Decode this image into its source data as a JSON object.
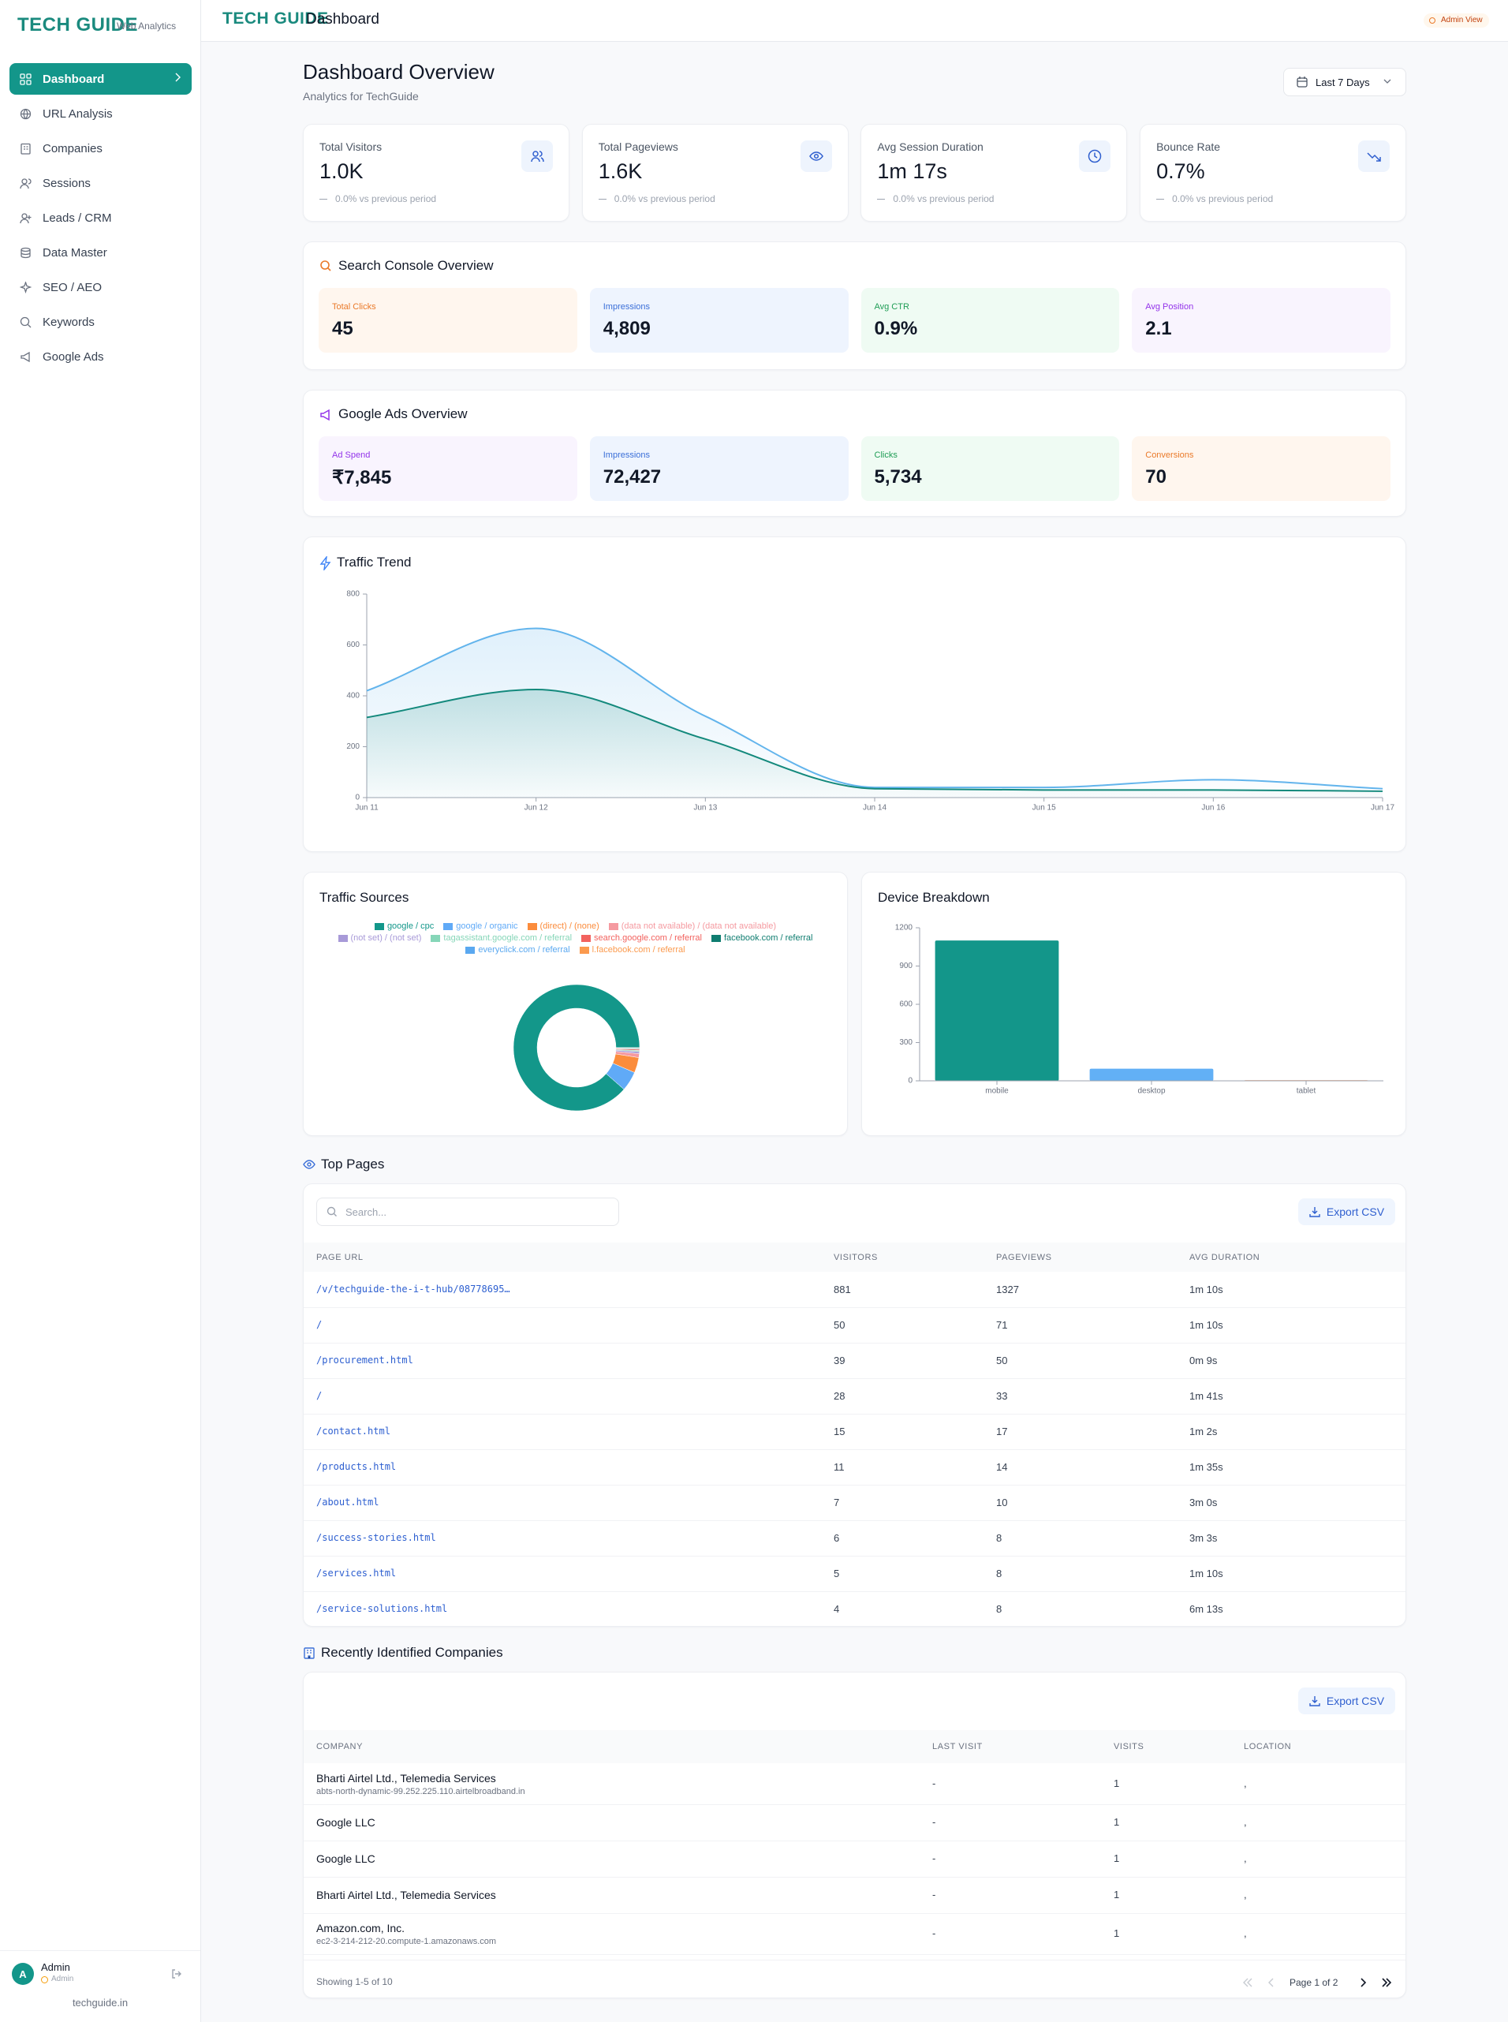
{
  "sidebar": {
    "brand": "TECH GUIDE",
    "brand_sub": "Web Analytics",
    "nav": [
      {
        "label": "Dashboard",
        "active": true
      },
      {
        "label": "URL Analysis"
      },
      {
        "label": "Companies"
      },
      {
        "label": "Sessions"
      },
      {
        "label": "Leads / CRM"
      },
      {
        "label": "Data Master"
      },
      {
        "label": "SEO / AEO"
      },
      {
        "label": "Keywords"
      },
      {
        "label": "Google Ads"
      }
    ],
    "user": {
      "initial": "A",
      "name": "Admin",
      "role": "Admin"
    },
    "footer": "techguide.in"
  },
  "header": {
    "brand": "TECH GUIDE",
    "title": "Dashboard",
    "badge": "Admin View"
  },
  "overview": {
    "title": "Dashboard Overview",
    "subtitle": "Analytics for TechGuide",
    "range": "Last 7 Days"
  },
  "stats": [
    {
      "label": "Total Visitors",
      "value": "1.0K",
      "change": "0.0% vs previous period"
    },
    {
      "label": "Total Pageviews",
      "value": "1.6K",
      "change": "0.0% vs previous period"
    },
    {
      "label": "Avg Session Duration",
      "value": "1m 17s",
      "change": "0.0% vs previous period"
    },
    {
      "label": "Bounce Rate",
      "value": "0.7%",
      "change": "0.0% vs previous period"
    }
  ],
  "search_console": {
    "title": "Search Console Overview",
    "metrics": [
      {
        "label": "Total Clicks",
        "value": "45",
        "color": "#ea7a2a",
        "bg": "#fff6ee"
      },
      {
        "label": "Impressions",
        "value": "4,809",
        "color": "#3b6fd8",
        "bg": "#eef4fe"
      },
      {
        "label": "Avg CTR",
        "value": "0.9%",
        "color": "#1f9d55",
        "bg": "#effbf3"
      },
      {
        "label": "Avg Position",
        "value": "2.1",
        "color": "#9333ea",
        "bg": "#f9f4fe"
      }
    ]
  },
  "google_ads": {
    "title": "Google Ads Overview",
    "metrics": [
      {
        "label": "Ad Spend",
        "value": "₹7,845",
        "color": "#9333ea",
        "bg": "#f9f4fe"
      },
      {
        "label": "Impressions",
        "value": "72,427",
        "color": "#3b6fd8",
        "bg": "#eef4fe"
      },
      {
        "label": "Clicks",
        "value": "5,734",
        "color": "#1f9d55",
        "bg": "#effbf3"
      },
      {
        "label": "Conversions",
        "value": "70",
        "color": "#ea7a2a",
        "bg": "#fff6ee"
      }
    ]
  },
  "chart_data": [
    {
      "type": "line",
      "title": "Traffic Trend",
      "categories": [
        "Jun 11",
        "Jun 12",
        "Jun 13",
        "Jun 14",
        "Jun 15",
        "Jun 16",
        "Jun 17"
      ],
      "series": [
        {
          "color": "#62b4ec",
          "values": [
            420,
            665,
            320,
            40,
            40,
            70,
            35
          ]
        },
        {
          "color": "#13897c",
          "values": [
            315,
            425,
            230,
            35,
            30,
            30,
            25
          ]
        }
      ],
      "ylim": [
        0,
        800
      ],
      "yticks": [
        0,
        200,
        400,
        600,
        800
      ],
      "grid": false,
      "area": true
    },
    {
      "type": "pie",
      "title": "Traffic Sources",
      "donut": true,
      "categories": [
        "google / cpc",
        "google / organic",
        "(direct) / (none)",
        "(data not available) / (data not available)",
        "(not set) / (not set)",
        "tagassistant.google.com / referral",
        "search.google.com / referral",
        "facebook.com / referral",
        "everyclick.com / referral",
        "l.facebook.com / referral"
      ],
      "values": [
        880,
        50,
        39,
        10,
        5,
        3,
        3,
        2,
        1,
        1
      ],
      "colors": [
        "#13978a",
        "#60aaf7",
        "#fb8c3c",
        "#f59aa0",
        "#a89ad8",
        "#86d6b8",
        "#f2625e",
        "#0f7d70",
        "#5aa8f0",
        "#fb9a4e"
      ]
    },
    {
      "type": "bar",
      "title": "Device Breakdown",
      "categories": [
        "mobile",
        "desktop",
        "tablet"
      ],
      "values": [
        1100,
        95,
        5
      ],
      "colors": [
        "#13968a",
        "#62b0f6",
        "#f08a4c"
      ],
      "ylim": [
        0,
        1200
      ],
      "yticks": [
        0,
        300,
        600,
        900,
        1200
      ],
      "grid": false
    }
  ],
  "top_pages": {
    "title": "Top Pages",
    "search_placeholder": "Search...",
    "export": "Export CSV",
    "columns": [
      "PAGE URL",
      "VISITORS",
      "PAGEVIEWS",
      "AVG DURATION"
    ],
    "rows": [
      [
        "/v/techguide-the-i-t-hub/08778695…",
        "881",
        "1327",
        "1m 10s"
      ],
      [
        "/",
        "50",
        "71",
        "1m 10s"
      ],
      [
        "/procurement.html",
        "39",
        "50",
        "0m 9s"
      ],
      [
        "/",
        "28",
        "33",
        "1m 41s"
      ],
      [
        "/contact.html",
        "15",
        "17",
        "1m 2s"
      ],
      [
        "/products.html",
        "11",
        "14",
        "1m 35s"
      ],
      [
        "/about.html",
        "7",
        "10",
        "3m 0s"
      ],
      [
        "/success-stories.html",
        "6",
        "8",
        "3m 3s"
      ],
      [
        "/services.html",
        "5",
        "8",
        "1m 10s"
      ],
      [
        "/service-solutions.html",
        "4",
        "8",
        "6m 13s"
      ]
    ]
  },
  "companies": {
    "title": "Recently Identified Companies",
    "export": "Export CSV",
    "columns": [
      "COMPANY",
      "LAST VISIT",
      "VISITS",
      "LOCATION"
    ],
    "rows": [
      {
        "name": "Bharti Airtel Ltd., Telemedia Services",
        "host": "abts-north-dynamic-99.252.225.110.airtelbroadband.in",
        "last_visit": "-",
        "visits": "1",
        "location": ","
      },
      {
        "name": "Google LLC",
        "last_visit": "-",
        "visits": "1",
        "location": ","
      },
      {
        "name": "Google LLC",
        "last_visit": "-",
        "visits": "1",
        "location": ","
      },
      {
        "name": "Bharti Airtel Ltd., Telemedia Services",
        "last_visit": "-",
        "visits": "1",
        "location": ","
      },
      {
        "name": "Amazon.com, Inc.",
        "host": "ec2-3-214-212-20.compute-1.amazonaws.com",
        "last_visit": "-",
        "visits": "1",
        "location": ","
      }
    ],
    "showing": "Showing 1-5 of 10",
    "page": "Page 1 of 2"
  }
}
